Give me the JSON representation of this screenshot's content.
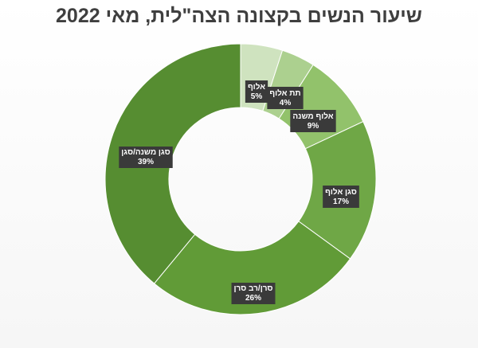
{
  "chart_data": {
    "type": "donut",
    "title": "שיעור הנשים בקצונה הצה\"לית, מאי 2022",
    "categories": [
      "אלוף",
      "תת אלוף",
      "אלוף משנה",
      "סגן אלוף",
      "סרן/רב סרן",
      "סגן משנה/סגן"
    ],
    "values": [
      5,
      4,
      9,
      17,
      26,
      39
    ],
    "value_labels": [
      "5%",
      "4%",
      "9%",
      "17%",
      "26%",
      "39%"
    ],
    "colors": [
      "#cfe3bf",
      "#acd08f",
      "#92c26b",
      "#6fa746",
      "#619b37",
      "#568d31"
    ],
    "start_angle": "top, clockwise",
    "legend": "none"
  }
}
